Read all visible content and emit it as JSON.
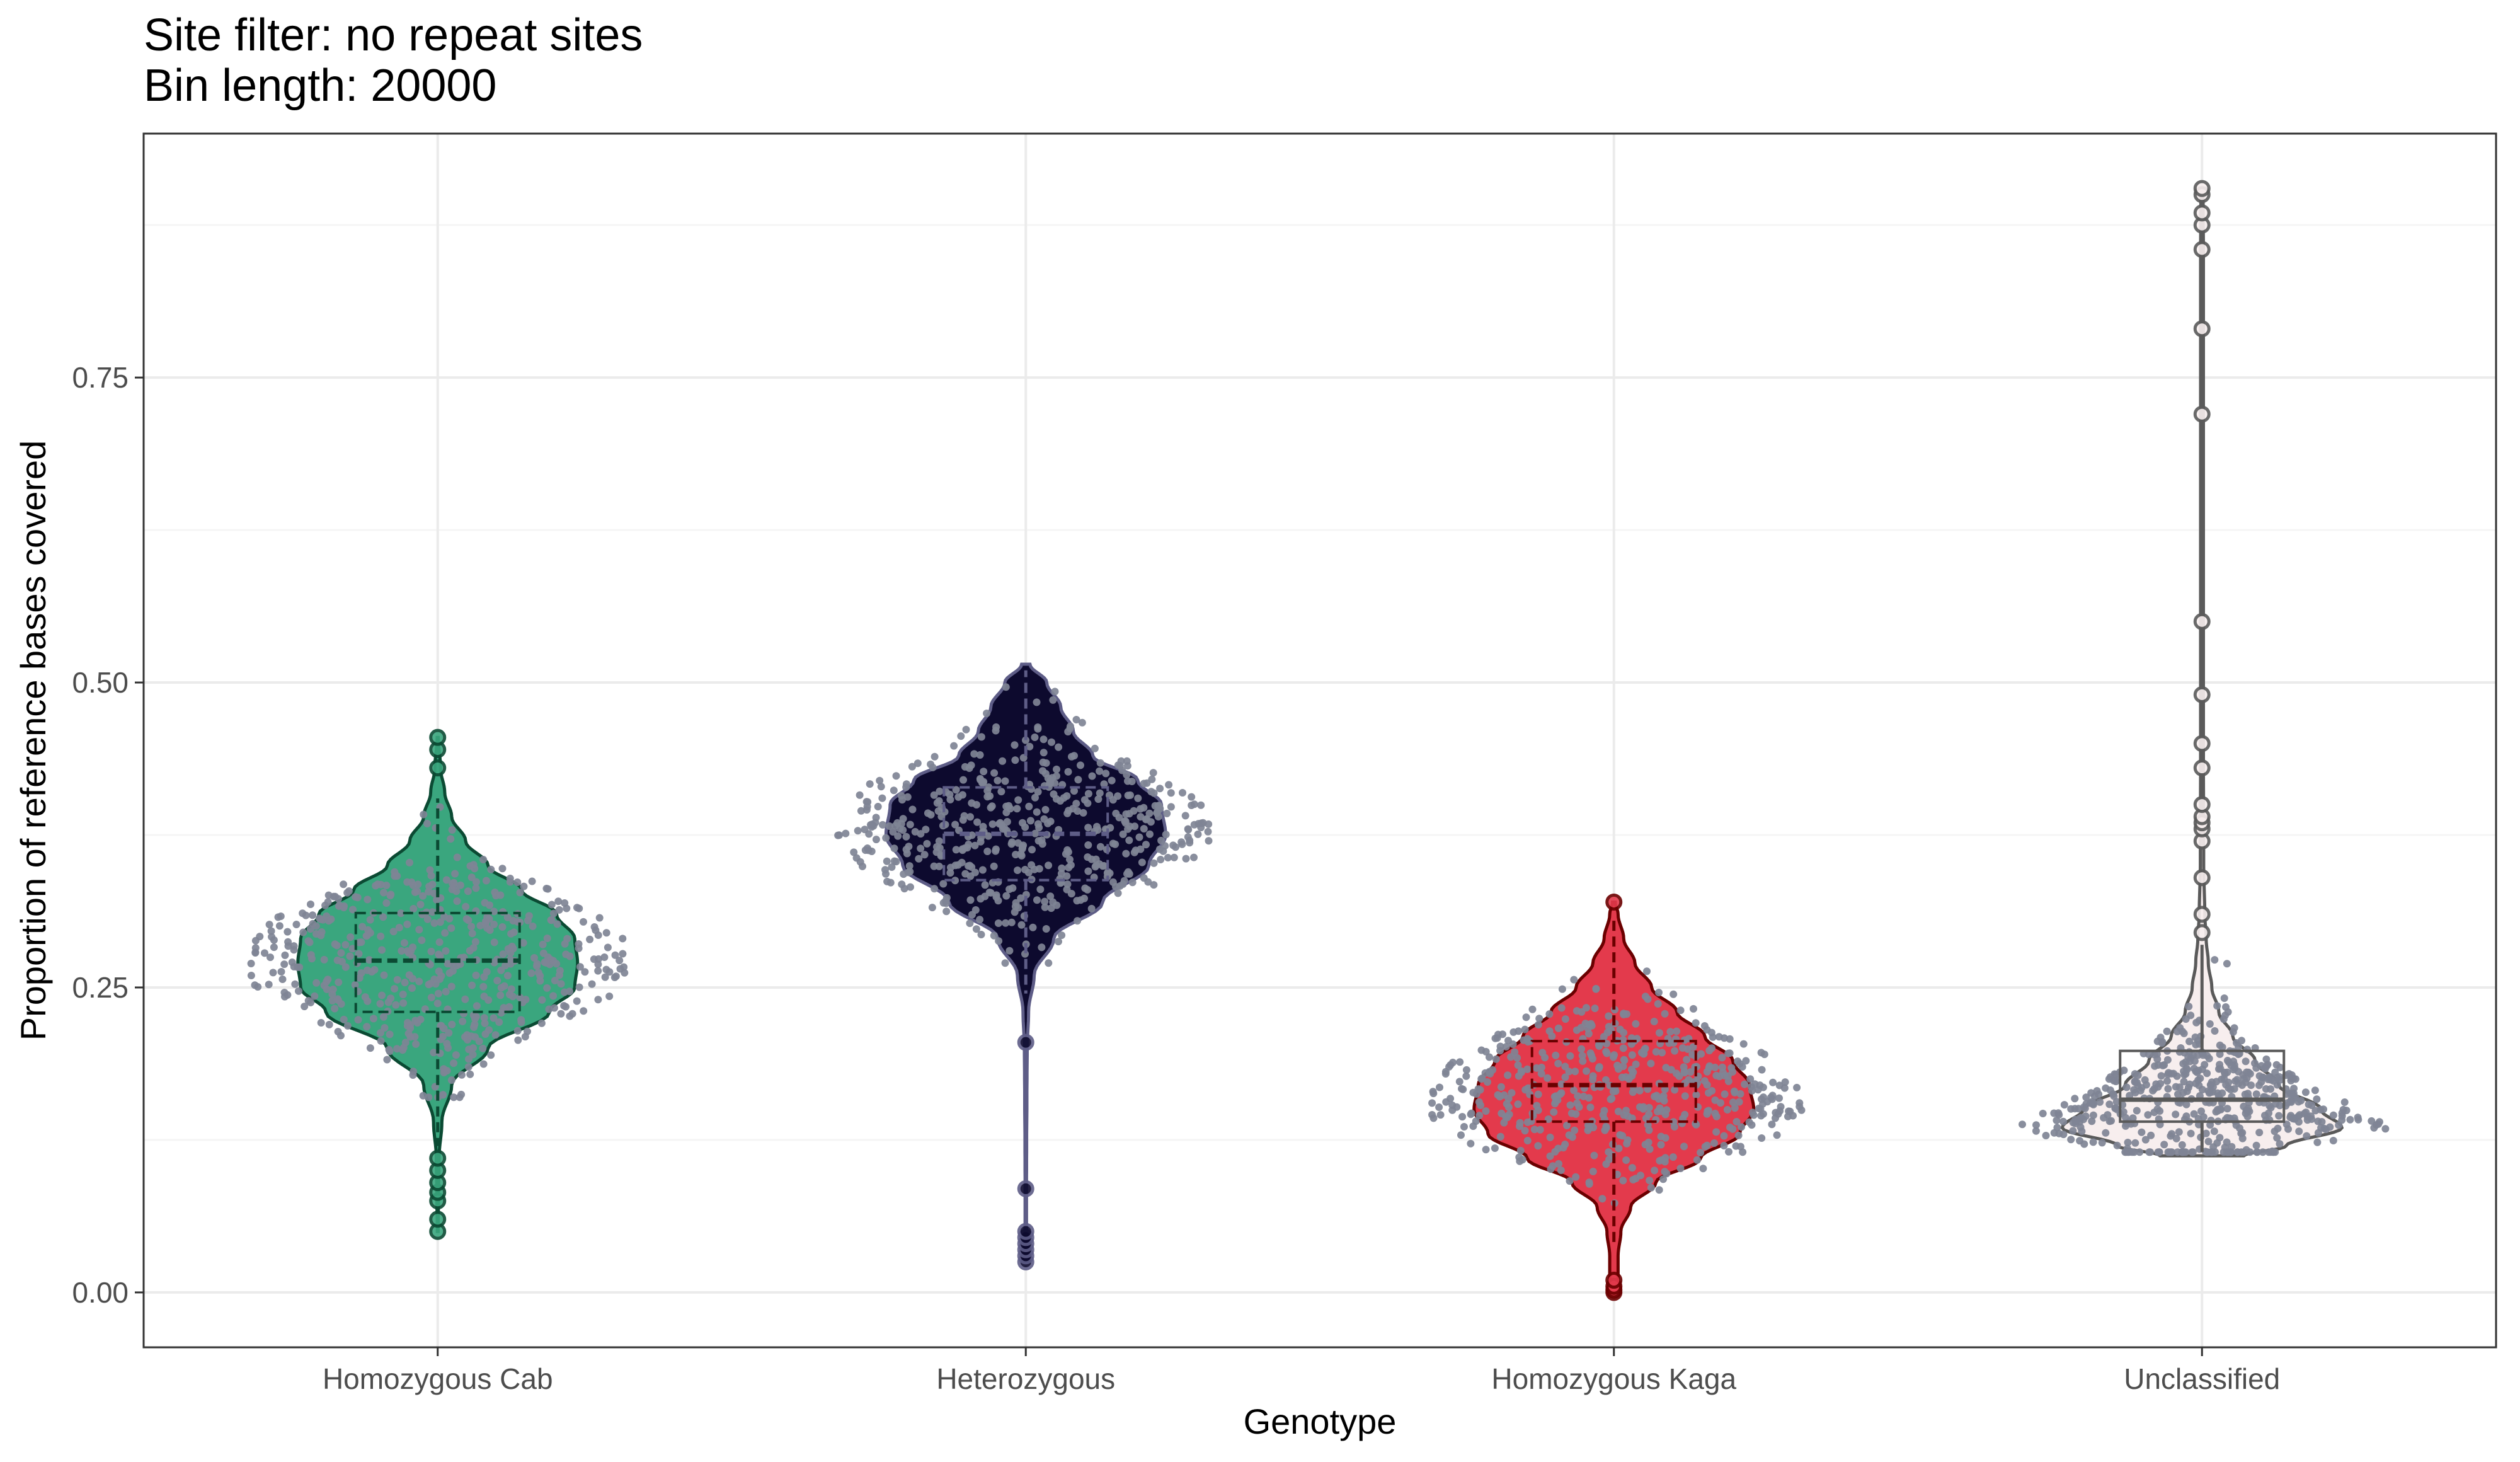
{
  "chart_data": {
    "type": "violin",
    "title": "Site filter: no repeat sites",
    "subtitle": "Bin length: 20000",
    "xlabel": "Genotype",
    "ylabel": "Proportion of reference bases covered",
    "categories": [
      "Homozygous Cab",
      "Heterozygous",
      "Homozygous Kaga",
      "Unclassified"
    ],
    "ylim": [
      -0.045,
      0.95
    ],
    "yticks": [
      0.0,
      0.25,
      0.5,
      0.75
    ],
    "ytick_labels": [
      "0.00",
      "0.25",
      "0.50",
      "0.75"
    ],
    "grid": true,
    "legend": "none",
    "series": [
      {
        "category": "Homozygous Cab",
        "fill": "#3aa67e",
        "line": "#0b4a33",
        "box": {
          "q1": 0.23,
          "median": 0.272,
          "q3": 0.311,
          "whisker_low": 0.12,
          "whisker_high": 0.405
        },
        "violin_profile": [
          [
            0.05,
            0.003
          ],
          [
            0.08,
            0.006
          ],
          [
            0.11,
            0.01
          ],
          [
            0.14,
            0.03
          ],
          [
            0.17,
            0.1
          ],
          [
            0.2,
            0.36
          ],
          [
            0.23,
            0.8
          ],
          [
            0.25,
            0.98
          ],
          [
            0.27,
            1.0
          ],
          [
            0.29,
            0.98
          ],
          [
            0.31,
            0.85
          ],
          [
            0.33,
            0.6
          ],
          [
            0.35,
            0.36
          ],
          [
            0.37,
            0.2
          ],
          [
            0.39,
            0.1
          ],
          [
            0.41,
            0.05
          ],
          [
            0.43,
            0.02
          ],
          [
            0.455,
            0.004
          ]
        ],
        "outliers": [
          0.05,
          0.06,
          0.075,
          0.082,
          0.09,
          0.1,
          0.11,
          0.43,
          0.445,
          0.455
        ],
        "points_center": 0.273,
        "points_spread": 0.045,
        "points_range": [
          0.16,
          0.4
        ]
      },
      {
        "category": "Heterozygous",
        "fill": "#0d0a2e",
        "line": "#5e5d87",
        "box": {
          "q1": 0.338,
          "median": 0.376,
          "q3": 0.414,
          "whisker_low": 0.245,
          "whisker_high": 0.51
        },
        "violin_profile": [
          [
            0.025,
            0.006
          ],
          [
            0.04,
            0.01
          ],
          [
            0.06,
            0.005
          ],
          [
            0.08,
            0.005
          ],
          [
            0.12,
            0.006
          ],
          [
            0.16,
            0.008
          ],
          [
            0.2,
            0.01
          ],
          [
            0.23,
            0.02
          ],
          [
            0.26,
            0.06
          ],
          [
            0.29,
            0.2
          ],
          [
            0.32,
            0.55
          ],
          [
            0.35,
            0.88
          ],
          [
            0.375,
            1.0
          ],
          [
            0.4,
            0.97
          ],
          [
            0.42,
            0.8
          ],
          [
            0.44,
            0.48
          ],
          [
            0.46,
            0.34
          ],
          [
            0.48,
            0.25
          ],
          [
            0.5,
            0.15
          ],
          [
            0.515,
            0.03
          ]
        ],
        "outliers": [
          0.025,
          0.03,
          0.035,
          0.04,
          0.045,
          0.05,
          0.085,
          0.205
        ],
        "points_center": 0.376,
        "points_spread": 0.04,
        "points_range": [
          0.27,
          0.51
        ]
      },
      {
        "category": "Homozygous Kaga",
        "fill": "#e33a4c",
        "line": "#6b0000",
        "box": {
          "q1": 0.14,
          "median": 0.17,
          "q3": 0.206,
          "whisker_low": 0.04,
          "whisker_high": 0.305
        },
        "violin_profile": [
          [
            0.0,
            0.01
          ],
          [
            0.01,
            0.03
          ],
          [
            0.03,
            0.03
          ],
          [
            0.05,
            0.05
          ],
          [
            0.07,
            0.12
          ],
          [
            0.09,
            0.3
          ],
          [
            0.11,
            0.62
          ],
          [
            0.13,
            0.9
          ],
          [
            0.15,
            1.0
          ],
          [
            0.17,
            0.97
          ],
          [
            0.19,
            0.85
          ],
          [
            0.21,
            0.65
          ],
          [
            0.23,
            0.45
          ],
          [
            0.25,
            0.27
          ],
          [
            0.27,
            0.15
          ],
          [
            0.29,
            0.07
          ],
          [
            0.31,
            0.03
          ],
          [
            0.32,
            0.01
          ]
        ],
        "outliers": [
          0.0,
          0.002,
          0.005,
          0.01,
          0.32
        ],
        "points_center": 0.17,
        "points_spread": 0.038,
        "points_range": [
          0.07,
          0.28
        ]
      },
      {
        "category": "Unclassified",
        "fill": "#f7eeee",
        "line": "#5a5a5a",
        "box": {
          "q1": 0.14,
          "median": 0.158,
          "q3": 0.198,
          "whisker_low": 0.115,
          "whisker_high": 0.285
        },
        "violin_profile": [
          [
            0.112,
            0.3
          ],
          [
            0.12,
            0.6
          ],
          [
            0.135,
            1.0
          ],
          [
            0.15,
            0.85
          ],
          [
            0.17,
            0.55
          ],
          [
            0.19,
            0.38
          ],
          [
            0.21,
            0.22
          ],
          [
            0.23,
            0.12
          ],
          [
            0.25,
            0.07
          ],
          [
            0.27,
            0.045
          ],
          [
            0.29,
            0.03
          ],
          [
            0.31,
            0.02
          ],
          [
            0.35,
            0.012
          ],
          [
            0.45,
            0.01
          ],
          [
            0.6,
            0.01
          ],
          [
            0.75,
            0.01
          ],
          [
            0.85,
            0.01
          ],
          [
            0.905,
            0.008
          ]
        ],
        "outliers": [
          0.295,
          0.31,
          0.34,
          0.37,
          0.38,
          0.385,
          0.39,
          0.4,
          0.43,
          0.45,
          0.49,
          0.55,
          0.72,
          0.79,
          0.855,
          0.875,
          0.885,
          0.9,
          0.905
        ],
        "points_center": 0.155,
        "points_spread": 0.03,
        "points_range": [
          0.115,
          0.29
        ]
      }
    ],
    "jitter_point_color": "#7f8495"
  },
  "colors": {
    "panel_border": "#333333",
    "grid_major": "#ebebeb",
    "grid_minor": "#f5f5f5",
    "tick_text": "#4d4d4d"
  }
}
